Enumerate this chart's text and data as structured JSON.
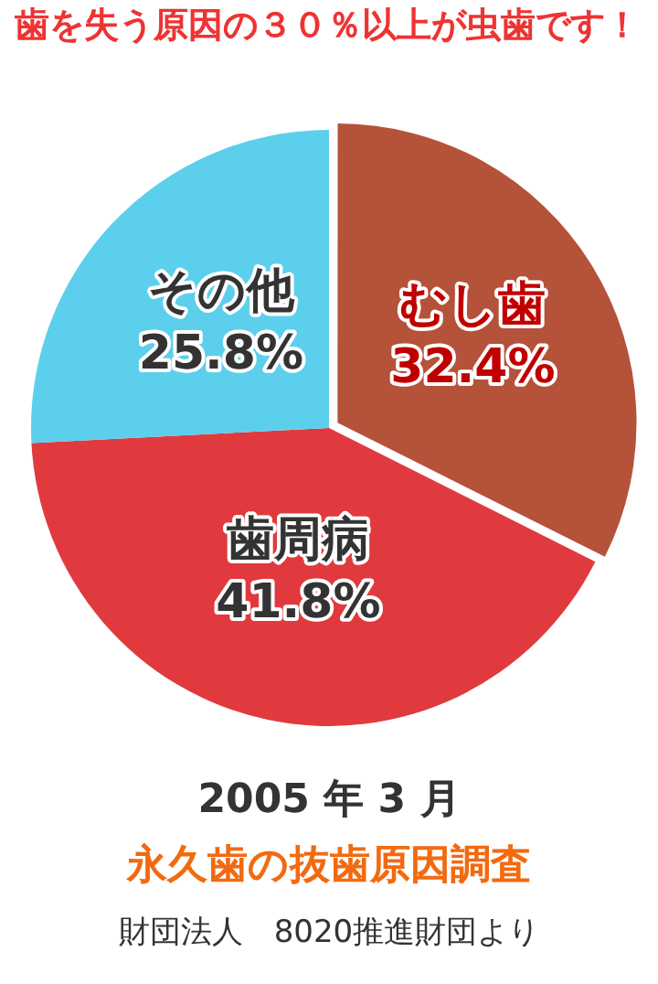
{
  "chart_data": {
    "type": "pie",
    "title": "歯を失う原因の３０％以上が虫歯です！",
    "categories": [
      "むし歯",
      "歯周病",
      "その他"
    ],
    "values": [
      32.4,
      41.8,
      25.8
    ],
    "value_labels": [
      "32.4%",
      "41.8%",
      "25.8%"
    ],
    "colors": [
      "#b5523a",
      "#e03a3e",
      "#5ccfec"
    ],
    "annotations": [
      "2005 年 3 月",
      "永久歯の抜歯原因調査",
      "財団法人　8020推進財団より"
    ],
    "legend": false
  }
}
